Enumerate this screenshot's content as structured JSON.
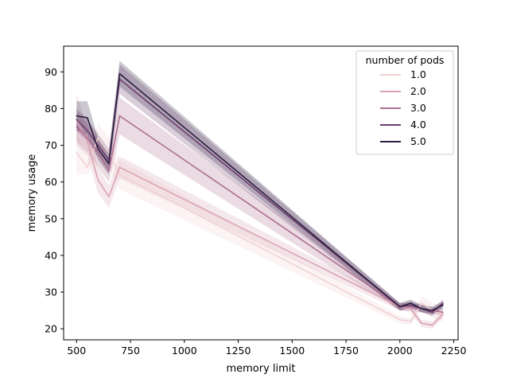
{
  "chart_data": {
    "type": "line",
    "xlabel": "memory limit",
    "ylabel": "memory usage",
    "xlim": [
      440,
      2270
    ],
    "ylim": [
      17,
      97
    ],
    "xticks": [
      500,
      750,
      1000,
      1250,
      1500,
      1750,
      2000,
      2250
    ],
    "yticks": [
      20,
      30,
      40,
      50,
      60,
      70,
      80,
      90
    ],
    "legend": {
      "title": "number of pods",
      "placement": "top-right"
    },
    "x": [
      500,
      550,
      600,
      650,
      700,
      2000,
      2050,
      2100,
      2150,
      2200
    ],
    "series": [
      {
        "name": "1.0",
        "color": "#efd1d3",
        "values": [
          68,
          64,
          72,
          68,
          62,
          22.5,
          22,
          27,
          25,
          24
        ],
        "ci_lower": [
          62,
          62,
          68,
          64,
          58,
          21.5,
          21,
          25,
          23,
          22
        ],
        "ci_upper": [
          74,
          66,
          76,
          72,
          66,
          23.5,
          23,
          29,
          27,
          26
        ]
      },
      {
        "name": "2.0",
        "color": "#d9a2b2",
        "values": [
          77,
          71,
          60.5,
          56,
          64,
          26,
          25.5,
          21.5,
          21,
          24
        ],
        "ci_lower": [
          70,
          67,
          57,
          53,
          61,
          25,
          24.5,
          20.5,
          20,
          23
        ],
        "ci_upper": [
          84,
          75,
          64,
          59,
          67,
          27,
          26.5,
          22.5,
          22,
          25
        ]
      },
      {
        "name": "3.0",
        "color": "#ae6e91",
        "values": [
          75,
          72,
          68,
          63,
          78,
          26,
          26,
          25.5,
          25,
          24.5
        ],
        "ci_lower": [
          71,
          68,
          64,
          60,
          73,
          25,
          25,
          24.5,
          24,
          23.5
        ],
        "ci_upper": [
          79,
          76,
          72,
          66,
          83,
          27,
          27,
          26.5,
          26,
          25.5
        ]
      },
      {
        "name": "4.0",
        "color": "#6b3d6e",
        "values": [
          77,
          74,
          70,
          66,
          88,
          26,
          26.5,
          25.5,
          24.5,
          27
        ],
        "ci_lower": [
          74,
          71,
          67,
          63,
          84,
          25,
          25.5,
          24.5,
          23.5,
          26
        ],
        "ci_upper": [
          80,
          77,
          73,
          69,
          92,
          27,
          27.5,
          26.5,
          25.5,
          28
        ]
      },
      {
        "name": "5.0",
        "color": "#2d1e3e",
        "values": [
          78,
          77.5,
          69,
          65,
          89.5,
          26,
          27,
          25.5,
          25,
          26.5
        ],
        "ci_lower": [
          74,
          73,
          66,
          62,
          86,
          25,
          26,
          24.5,
          24,
          25.5
        ],
        "ci_upper": [
          82,
          82,
          72,
          68,
          93,
          27,
          28,
          26.5,
          26,
          27.5
        ]
      }
    ]
  }
}
